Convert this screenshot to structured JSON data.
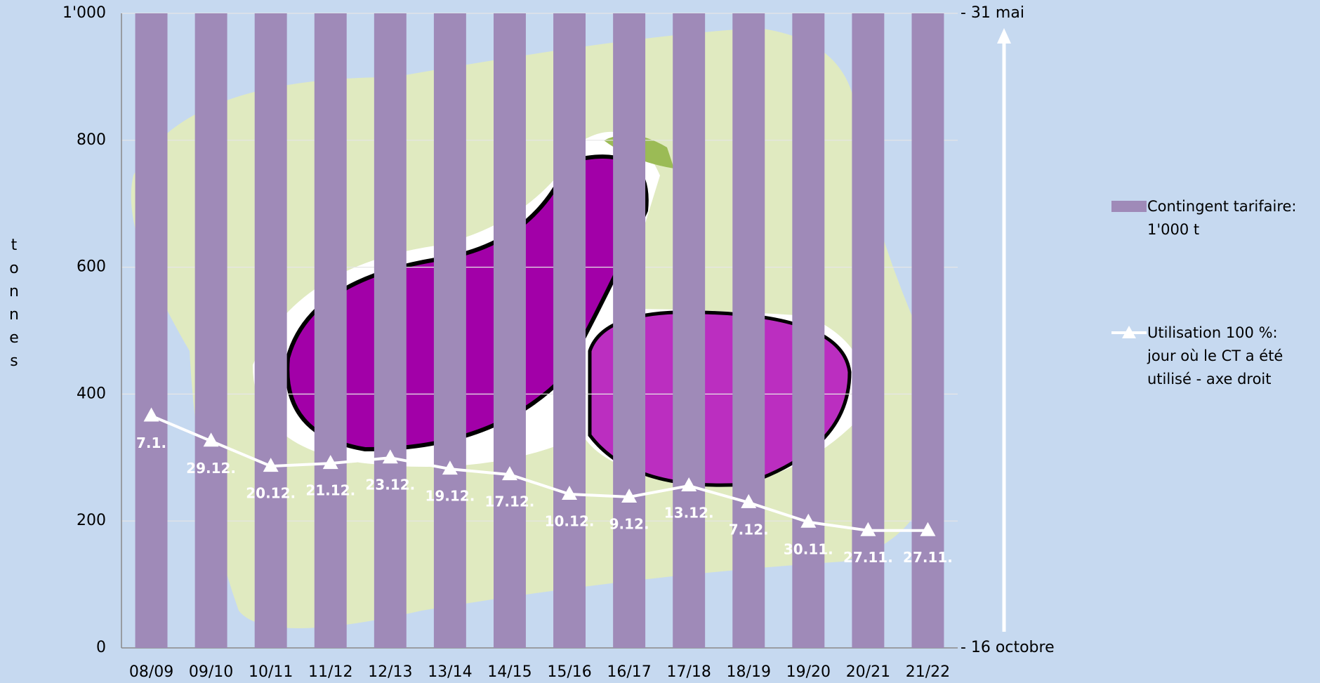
{
  "chart_data": {
    "type": "bar",
    "y_label": "tonnes",
    "categories": [
      "08/09",
      "09/10",
      "10/11",
      "11/12",
      "12/13",
      "13/14",
      "14/15",
      "15/16",
      "16/17",
      "17/18",
      "18/19",
      "19/20",
      "20/21",
      "21/22"
    ],
    "series": [
      {
        "name": "Contingent tarifaire: 1'000 t",
        "type": "bar",
        "color": "#9f8ab8",
        "values": [
          1000,
          1000,
          1000,
          1000,
          1000,
          1000,
          1000,
          1000,
          1000,
          1000,
          1000,
          1000,
          1000,
          1000
        ]
      },
      {
        "name": "Utilisation 100 %: jour où le CT a été utilisé - axe droit",
        "type": "line",
        "axis": "y2",
        "color": "#ffffff",
        "values": [
          83,
          74,
          65,
          66,
          68,
          64,
          62,
          55,
          54,
          58,
          52,
          45,
          42,
          42
        ],
        "value_labels": [
          "7.1.",
          "29.12.",
          "20.12.",
          "21.12.",
          "23.12.",
          "19.12.",
          "17.12.",
          "10.12.",
          "9.12.",
          "13.12.",
          "7.12.",
          "30.11.",
          "27.11.",
          "27.11."
        ]
      }
    ],
    "ylim": [
      0,
      1000
    ],
    "yticks": [
      0,
      200,
      400,
      600,
      800,
      {
        "value": 1000,
        "label": "1'000"
      }
    ],
    "y2lim": [
      0,
      227
    ],
    "y2ticks": [
      {
        "value": 0,
        "label": "- 16 octobre"
      },
      {
        "value": 227,
        "label": "- 31 mai"
      }
    ],
    "grid": true
  }
}
